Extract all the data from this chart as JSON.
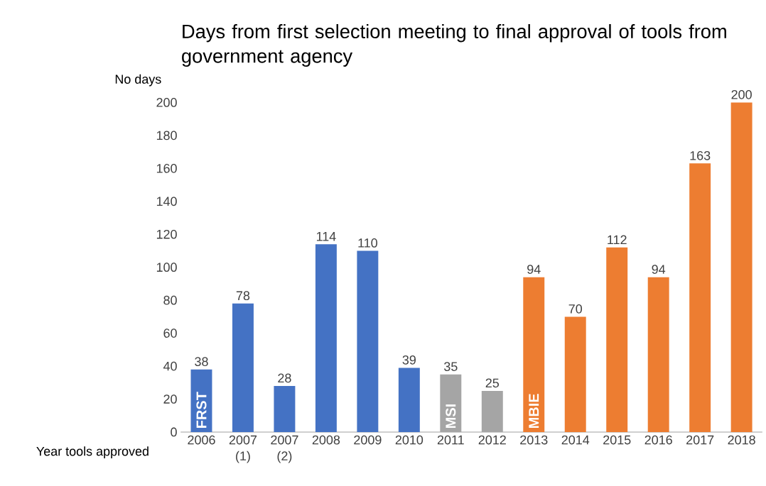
{
  "chart_data": {
    "type": "bar",
    "title": "Days from first selection meeting to final approval of tools from government agency",
    "xlabel": "Year tools approved",
    "ylabel": "No days",
    "categories": [
      "2006",
      "2007 (1)",
      "2007 (2)",
      "2008",
      "2009",
      "2010",
      "2011",
      "2012",
      "2013",
      "2014",
      "2015",
      "2016",
      "2017",
      "2018"
    ],
    "values": [
      38,
      78,
      28,
      114,
      110,
      39,
      35,
      25,
      94,
      70,
      112,
      94,
      163,
      200
    ],
    "colors": [
      "#4472c4",
      "#4472c4",
      "#4472c4",
      "#4472c4",
      "#4472c4",
      "#4472c4",
      "#a5a5a5",
      "#a5a5a5",
      "#ed7d31",
      "#ed7d31",
      "#ed7d31",
      "#ed7d31",
      "#ed7d31",
      "#ed7d31"
    ],
    "ylim": [
      0,
      200
    ],
    "yticks": [
      0,
      20,
      40,
      60,
      80,
      100,
      120,
      140,
      160,
      180,
      200
    ],
    "data_labels": true,
    "annotations": [
      "FRST",
      "MSI",
      "MBIE"
    ]
  }
}
